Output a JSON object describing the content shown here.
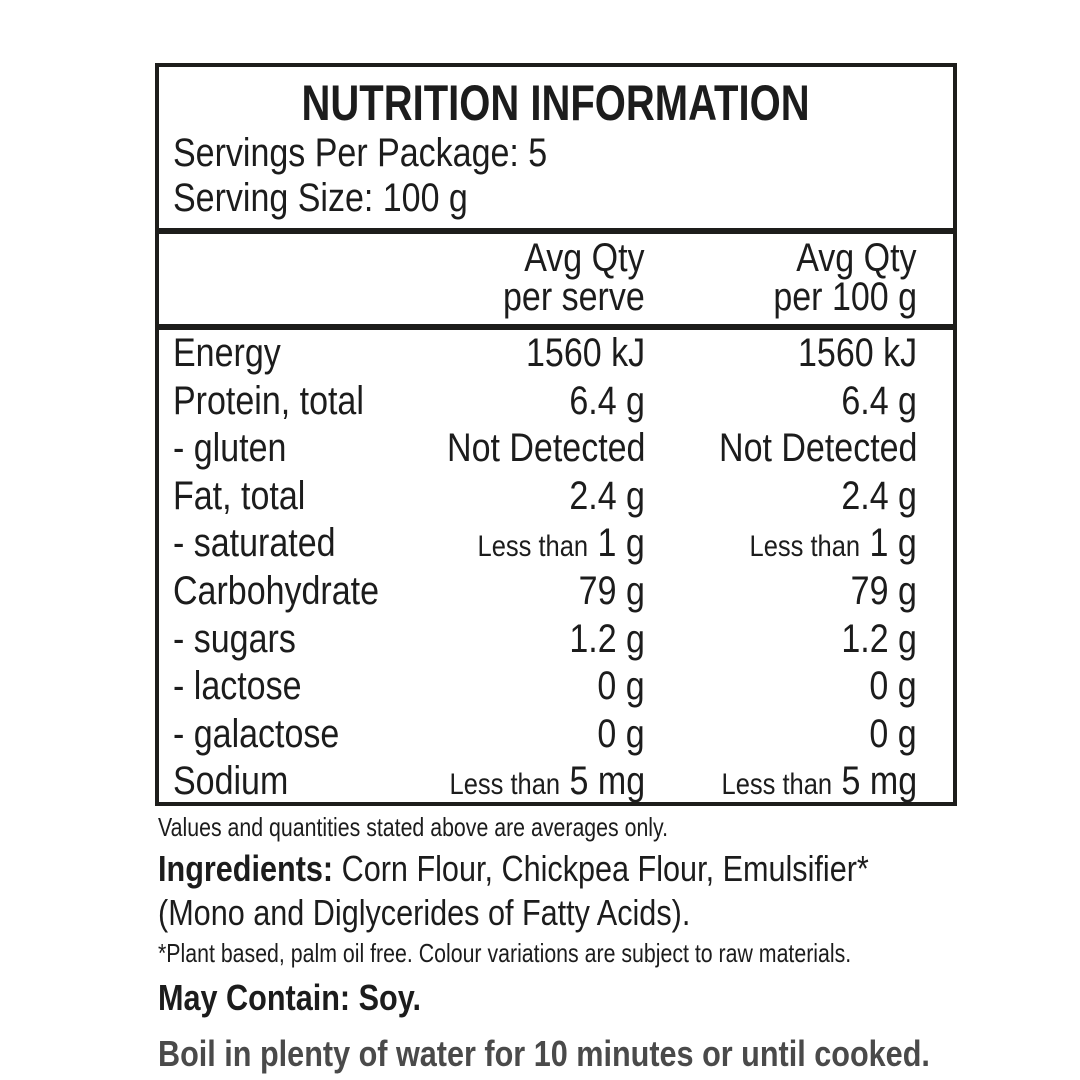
{
  "colors": {
    "text": "#1c1c1c",
    "border": "#1d1d1b",
    "background": "#ffffff"
  },
  "panel": {
    "title": "NUTRITION INFORMATION",
    "servings_per_package": "Servings Per Package: 5",
    "serving_size": "Serving Size: 100 g",
    "col1_header_line1": "Avg Qty",
    "col1_header_line2": "per serve",
    "col2_header_line1": "Avg Qty",
    "col2_header_line2": "per 100 g",
    "rows": [
      {
        "label": "Energy",
        "v1_small": "",
        "v1": "1560 kJ",
        "v2_small": "",
        "v2": "1560 kJ"
      },
      {
        "label": "Protein, total",
        "v1_small": "",
        "v1": "6.4 g",
        "v2_small": "",
        "v2": "6.4 g"
      },
      {
        "label": "- gluten",
        "v1_small": "",
        "v1": "Not Detected",
        "v2_small": "",
        "v2": "Not Detected"
      },
      {
        "label": "Fat, total",
        "v1_small": "",
        "v1": "2.4 g",
        "v2_small": "",
        "v2": "2.4 g"
      },
      {
        "label": "- saturated",
        "v1_small": "Less than",
        "v1": " 1 g",
        "v2_small": "Less than",
        "v2": " 1 g"
      },
      {
        "label": "Carbohydrate",
        "v1_small": "",
        "v1": "79 g",
        "v2_small": "",
        "v2": "79 g"
      },
      {
        "label": "- sugars",
        "v1_small": "",
        "v1": "1.2 g",
        "v2_small": "",
        "v2": "1.2 g"
      },
      {
        "label": "- lactose",
        "v1_small": "",
        "v1": "0 g",
        "v2_small": "",
        "v2": "0 g"
      },
      {
        "label": "- galactose",
        "v1_small": "",
        "v1": "0 g",
        "v2_small": "",
        "v2": "0 g"
      },
      {
        "label": "Sodium",
        "v1_small": "Less than",
        "v1": " 5 mg",
        "v2_small": "Less than",
        "v2": " 5 mg"
      }
    ]
  },
  "footer": {
    "averages_note": "Values and quantities stated above are averages only.",
    "ingredients_label": "Ingredients:",
    "ingredients_line1_rest": " Corn Flour, Chickpea Flour, Emulsifier*",
    "ingredients_line2": "(Mono and Diglycerides of Fatty Acids).",
    "footnote": "*Plant based, palm oil free. Colour variations are subject to raw materials.",
    "may_contain": "May Contain: Soy.",
    "cutoff_partial_line": "Boil in plenty of water for 10 minutes or until cooked."
  }
}
